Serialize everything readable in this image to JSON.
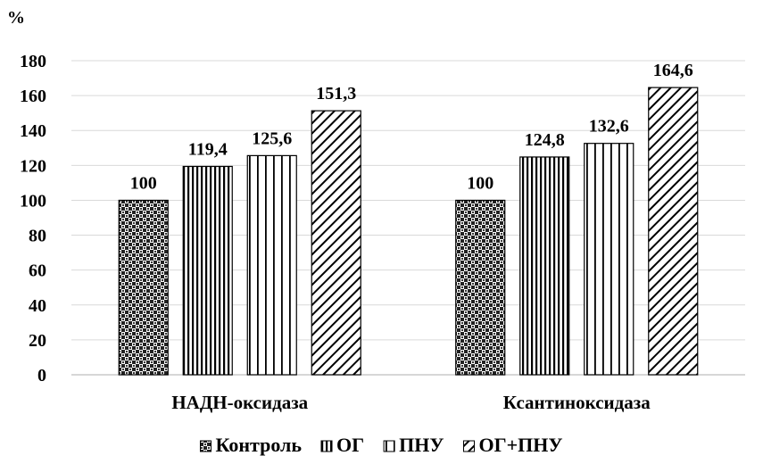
{
  "chart_data": {
    "type": "bar",
    "unit_label": "%",
    "categories": [
      "НАДН-оксидаза",
      "Ксантиноксидаза"
    ],
    "series": [
      {
        "name": "Контроль",
        "values": [
          100,
          100
        ],
        "data_labels": [
          "100",
          "100"
        ],
        "pattern": "crosshatch"
      },
      {
        "name": "ОГ",
        "values": [
          119.4,
          124.8
        ],
        "data_labels": [
          "119,4",
          "124,8"
        ],
        "pattern": "dense-vertical"
      },
      {
        "name": "ПНУ",
        "values": [
          125.6,
          132.6
        ],
        "data_labels": [
          "125,6",
          "132,6"
        ],
        "pattern": "wide-vertical"
      },
      {
        "name": "ОГ+ПНУ",
        "values": [
          151.3,
          164.6
        ],
        "data_labels": [
          "151,3",
          "164,6"
        ],
        "pattern": "diagonal"
      }
    ],
    "ylim": [
      0,
      180
    ],
    "yticks": [
      0,
      20,
      40,
      60,
      80,
      100,
      120,
      140,
      160,
      180
    ],
    "grid": true,
    "legend_position": "bottom"
  }
}
